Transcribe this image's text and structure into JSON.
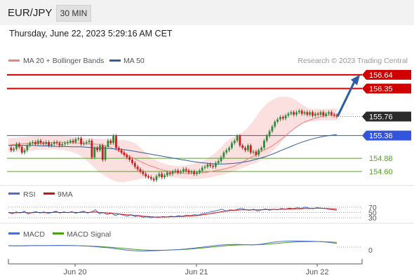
{
  "header": {
    "symbol": "EUR/JPY",
    "timeframe": "30 MIN",
    "datetime": "Thursday, June 22, 2023 5:29:16 AM CET"
  },
  "colors": {
    "ma20": "#f08080",
    "ma50": "#2f5f9e",
    "band_fill": "#fcd9d9",
    "resistance": "#d00000",
    "support_blue": "#3355dd",
    "support_green": "#5aa02c",
    "bull": "#2e8b3c",
    "bear": "#c81e1e",
    "arrow": "#2a5ca8",
    "rsi": "#4a6fd0",
    "rsi_ma": "#d01010",
    "macd": "#4a6fd0",
    "macd_signal": "#4a9e1a",
    "current": "#2b2b2b"
  },
  "chart_data": [
    {
      "type": "line",
      "panel": "price",
      "legend": [
        {
          "name": "MA 20 + Bollinger Bands",
          "color": "#f08080"
        },
        {
          "name": "MA 50",
          "color": "#2f5f9e"
        }
      ],
      "source": "Research © 2023 Trading Central",
      "ylim": [
        154.35,
        156.8
      ],
      "x_ticks": [
        "Jun 20",
        "Jun 21",
        "Jun 22"
      ],
      "levels": [
        {
          "value": 156.64,
          "label": "156.64",
          "color": "#d00000",
          "kind": "resistance"
        },
        {
          "value": 156.35,
          "label": "156.35",
          "color": "#d00000",
          "kind": "resistance"
        },
        {
          "value": 155.76,
          "label": "155.76",
          "color": "#2b2b2b",
          "kind": "current"
        },
        {
          "value": 155.36,
          "label": "155.36",
          "color": "#3355dd",
          "kind": "support"
        },
        {
          "value": 154.88,
          "label": "154.88",
          "color": "#5aa02c",
          "kind": "support"
        },
        {
          "value": 154.6,
          "label": "154.60",
          "color": "#5aa02c",
          "kind": "support"
        }
      ],
      "price_close": [
        155.1,
        155.05,
        155.08,
        155.18,
        155.12,
        155.0,
        155.05,
        155.15,
        155.2,
        155.22,
        155.18,
        155.25,
        155.2,
        155.18,
        155.22,
        155.15,
        155.18,
        155.22,
        155.2,
        155.15,
        155.18,
        155.2,
        155.22,
        155.25,
        155.22,
        155.28,
        155.3,
        155.18,
        155.2,
        155.22,
        155.25,
        154.9,
        155.1,
        155.05,
        155.15,
        154.85,
        155.12,
        155.25,
        155.2,
        155.35,
        155.1,
        155.05,
        155.0,
        154.95,
        154.9,
        154.85,
        154.78,
        154.7,
        154.65,
        154.6,
        154.55,
        154.5,
        154.48,
        154.45,
        154.42,
        154.5,
        154.55,
        154.48,
        154.52,
        154.58,
        154.55,
        154.6,
        154.62,
        154.58,
        154.6,
        154.65,
        154.62,
        154.58,
        154.6,
        154.55,
        154.58,
        154.62,
        154.68,
        154.7,
        154.75,
        154.72,
        154.7,
        154.78,
        154.82,
        154.9,
        155.0,
        155.05,
        155.1,
        155.2,
        155.25,
        155.35,
        155.15,
        155.1,
        155.05,
        155.15,
        155.0,
        155.02,
        154.95,
        155.05,
        155.1,
        155.25,
        155.35,
        155.45,
        155.55,
        155.65,
        155.7,
        155.75,
        155.72,
        155.78,
        155.82,
        155.85,
        155.8,
        155.85,
        155.88,
        155.82,
        155.85,
        155.8,
        155.85,
        155.78,
        155.82,
        155.8,
        155.85,
        155.78,
        155.82,
        155.85,
        155.8,
        155.78,
        155.76
      ],
      "ma20": [
        155.15,
        155.17,
        155.18,
        155.19,
        155.2,
        155.2,
        155.2,
        155.21,
        155.21,
        155.21,
        155.22,
        155.22,
        155.21,
        155.21,
        155.2,
        155.19,
        155.18,
        155.18,
        155.17,
        155.15,
        155.12,
        155.07,
        155.02,
        154.97,
        154.92,
        154.87,
        154.82,
        154.77,
        154.72,
        154.69,
        154.65,
        154.62,
        154.6,
        154.58,
        154.57,
        154.56,
        154.56,
        154.56,
        154.57,
        154.58,
        154.6,
        154.62,
        154.64,
        154.66,
        154.69,
        154.73,
        154.78,
        154.84,
        154.9,
        154.96,
        155.02,
        155.07,
        155.13,
        155.2,
        155.28,
        155.37,
        155.46,
        155.54,
        155.61,
        155.66,
        155.7,
        155.73,
        155.76,
        155.78,
        155.79,
        155.8
      ],
      "ma20_x_range": [
        0.0,
        1.0
      ],
      "bb_upper": [
        155.3,
        155.31,
        155.32,
        155.33,
        155.34,
        155.35,
        155.36,
        155.36,
        155.37,
        155.37,
        155.36,
        155.35,
        155.34,
        155.33,
        155.32,
        155.31,
        155.3,
        155.3,
        155.29,
        155.29,
        155.29,
        155.28,
        155.27,
        155.26,
        155.24,
        155.2,
        155.12,
        155.02,
        154.92,
        154.85,
        154.8,
        154.76,
        154.74,
        154.72,
        154.72,
        154.73,
        154.75,
        154.78,
        154.8,
        154.85,
        154.92,
        155.0,
        155.1,
        155.22,
        155.3,
        155.35,
        155.4,
        155.48,
        155.6,
        155.75,
        155.9,
        156.02,
        156.1,
        156.15,
        156.18,
        156.18,
        156.16,
        156.1,
        156.02,
        155.95,
        155.92,
        155.92,
        155.92,
        155.92,
        155.93,
        155.93
      ],
      "bb_lower": [
        155.0,
        155.01,
        155.02,
        155.03,
        155.04,
        155.05,
        155.06,
        155.06,
        155.07,
        155.07,
        155.06,
        155.05,
        155.03,
        155.0,
        154.95,
        154.88,
        154.78,
        154.68,
        154.58,
        154.52,
        154.45,
        154.4,
        154.38,
        154.38,
        154.4,
        154.42,
        154.44,
        154.46,
        154.47,
        154.48,
        154.48,
        154.48,
        154.48,
        154.47,
        154.46,
        154.45,
        154.44,
        154.44,
        154.45,
        154.46,
        154.48,
        154.5,
        154.52,
        154.55,
        154.58,
        154.62,
        154.66,
        154.7,
        154.74,
        154.78,
        154.84,
        154.92,
        155.0,
        155.1,
        155.22,
        155.34,
        155.45,
        155.54,
        155.6,
        155.64,
        155.66,
        155.67,
        155.68,
        155.68,
        155.68,
        155.68
      ],
      "ma50": [
        155.15,
        155.15,
        155.15,
        155.15,
        155.14,
        155.14,
        155.13,
        155.13,
        155.12,
        155.12,
        155.11,
        155.1,
        155.09,
        155.08,
        155.07,
        155.05,
        155.02,
        154.99,
        154.96,
        154.93,
        154.9,
        154.87,
        154.84,
        154.81,
        154.79,
        154.77,
        154.76,
        154.76,
        154.77,
        154.79,
        154.82,
        154.86,
        154.91,
        154.97,
        155.04,
        155.11,
        155.18,
        155.24,
        155.29,
        155.33,
        155.36,
        155.38
      ],
      "arrow": {
        "from_value": 155.76,
        "to_value": 156.64
      }
    },
    {
      "type": "line",
      "panel": "rsi",
      "legend": [
        {
          "name": "RSI",
          "color": "#4a6fd0"
        },
        {
          "name": "9MA",
          "color": "#d01010"
        }
      ],
      "ylim": [
        20,
        80
      ],
      "levels": [
        {
          "value": 70,
          "label": "70"
        },
        {
          "value": 50,
          "label": "50"
        },
        {
          "value": 30,
          "label": "30"
        }
      ],
      "rsi": [
        50,
        45,
        52,
        48,
        55,
        44,
        50,
        53,
        48,
        52,
        46,
        50,
        55,
        48,
        52,
        49,
        53,
        47,
        51,
        55,
        48,
        52,
        60,
        45,
        50,
        42,
        48,
        38,
        44,
        40,
        36,
        42,
        35,
        38,
        32,
        34,
        30,
        33,
        31,
        35,
        33,
        36,
        34,
        38,
        36,
        40,
        38,
        42,
        40,
        45,
        48,
        52,
        55,
        58,
        62,
        55,
        60,
        58,
        62,
        65,
        60,
        58,
        62,
        55,
        60,
        63,
        58,
        62,
        60,
        65,
        62,
        66,
        64,
        68,
        65,
        70,
        66,
        64,
        68,
        66,
        65,
        62,
        60,
        58
      ],
      "rsi_ma": [
        50,
        49,
        49,
        50,
        50,
        49,
        49,
        50,
        50,
        49,
        50,
        50,
        51,
        50,
        50,
        50,
        51,
        50,
        50,
        51,
        50,
        51,
        52,
        50,
        49,
        48,
        47,
        45,
        44,
        43,
        41,
        40,
        39,
        38,
        36,
        35,
        34,
        33,
        33,
        33,
        33,
        34,
        34,
        35,
        35,
        36,
        37,
        38,
        39,
        41,
        43,
        45,
        48,
        50,
        53,
        55,
        57,
        58,
        59,
        60,
        60,
        60,
        60,
        60,
        60,
        61,
        61,
        61,
        61,
        62,
        62,
        63,
        63,
        64,
        64,
        65,
        65,
        65,
        66,
        66,
        65,
        64,
        63,
        62
      ]
    },
    {
      "type": "line",
      "panel": "macd",
      "legend": [
        {
          "name": "MACD",
          "color": "#4a6fd0"
        },
        {
          "name": "MACD Signal",
          "color": "#4a9e1a"
        }
      ],
      "ylim": [
        -1,
        1
      ],
      "levels": [
        {
          "value": 0,
          "label": "0"
        }
      ],
      "macd": [
        0.05,
        0.04,
        0.05,
        0.06,
        0.05,
        0.06,
        0.07,
        0.06,
        0.05,
        0.03,
        0.0,
        -0.05,
        -0.1,
        -0.18,
        -0.25,
        -0.3,
        -0.32,
        -0.3,
        -0.28,
        -0.25,
        -0.22,
        -0.18,
        -0.12,
        -0.05,
        0.02,
        0.08,
        0.12,
        0.14,
        0.12,
        0.1,
        0.15,
        0.25,
        0.32,
        0.36,
        0.37,
        0.36,
        0.35,
        0.33,
        0.28,
        0.2
      ],
      "macd_signal": [
        0.04,
        0.04,
        0.04,
        0.05,
        0.05,
        0.05,
        0.06,
        0.06,
        0.05,
        0.04,
        0.02,
        -0.01,
        -0.05,
        -0.1,
        -0.15,
        -0.2,
        -0.24,
        -0.26,
        -0.26,
        -0.25,
        -0.23,
        -0.2,
        -0.16,
        -0.11,
        -0.05,
        0.0,
        0.05,
        0.09,
        0.11,
        0.11,
        0.12,
        0.16,
        0.21,
        0.26,
        0.3,
        0.32,
        0.33,
        0.33,
        0.31,
        0.27
      ]
    }
  ]
}
